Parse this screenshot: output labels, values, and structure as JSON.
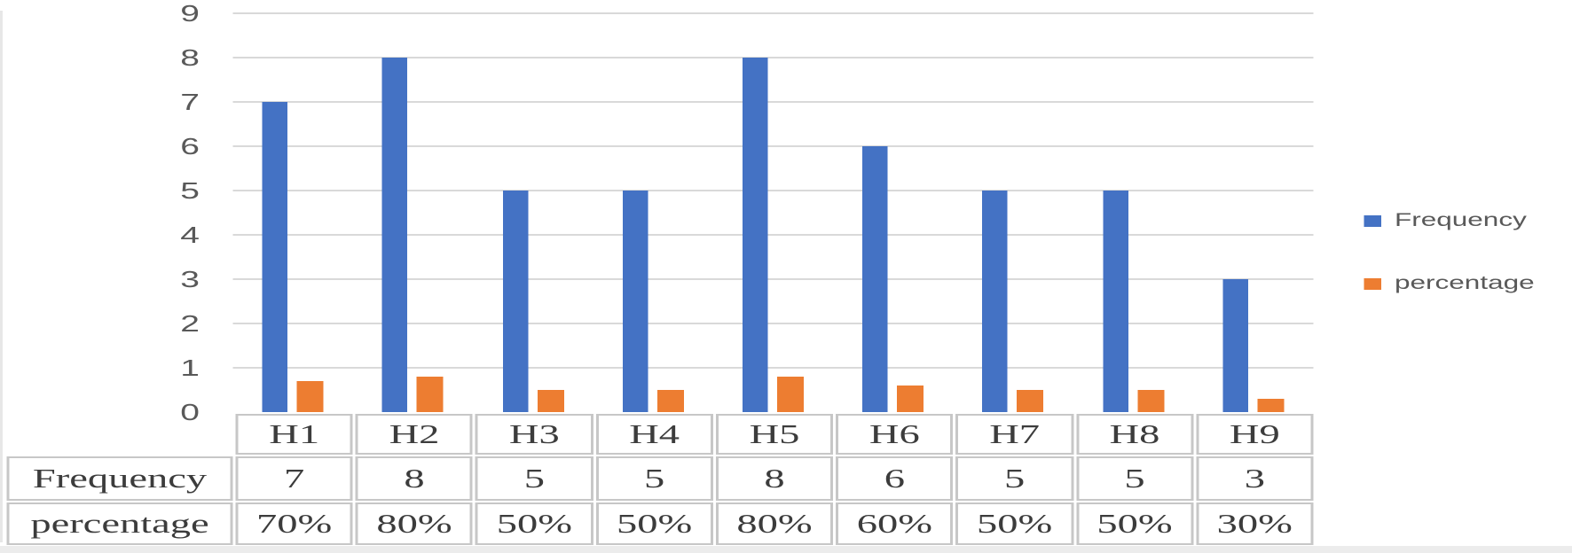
{
  "chart_data": {
    "type": "bar",
    "title": "",
    "xlabel": "",
    "ylabel": "",
    "categories": [
      "H1",
      "H2",
      "H3",
      "H4",
      "H5",
      "H6",
      "H7",
      "H8",
      "H9"
    ],
    "series": [
      {
        "name": "Frequency",
        "color": "#4472C4",
        "values": [
          7,
          8,
          5,
          5,
          8,
          6,
          5,
          5,
          3
        ]
      },
      {
        "name": "percentage",
        "color": "#ED7D31",
        "values": [
          0.7,
          0.8,
          0.5,
          0.5,
          0.8,
          0.6,
          0.5,
          0.5,
          0.3
        ],
        "display_labels": [
          "70%",
          "80%",
          "50%",
          "50%",
          "80%",
          "60%",
          "50%",
          "50%",
          "30%"
        ]
      }
    ],
    "ylim": [
      0,
      9
    ],
    "yticks": [
      "0",
      "1",
      "2",
      "3",
      "4",
      "5",
      "6",
      "7",
      "8",
      "9"
    ],
    "grid": true,
    "gridline_color": "#d9d9d9",
    "legend_position": "right"
  },
  "legend": {
    "items": [
      {
        "label": "Frequency",
        "color": "#4472C4"
      },
      {
        "label": "percentage",
        "color": "#ED7D31"
      }
    ]
  },
  "table": {
    "header_cells": [
      "H1",
      "H2",
      "H3",
      "H4",
      "H5",
      "H6",
      "H7",
      "H8",
      "H9"
    ],
    "rows": [
      {
        "label": "Frequency",
        "values": [
          "7",
          "8",
          "5",
          "5",
          "8",
          "6",
          "5",
          "5",
          "3"
        ]
      },
      {
        "label": "percentage",
        "values": [
          "70%",
          "80%",
          "50%",
          "50%",
          "80%",
          "60%",
          "50%",
          "50%",
          "30%"
        ]
      }
    ]
  }
}
